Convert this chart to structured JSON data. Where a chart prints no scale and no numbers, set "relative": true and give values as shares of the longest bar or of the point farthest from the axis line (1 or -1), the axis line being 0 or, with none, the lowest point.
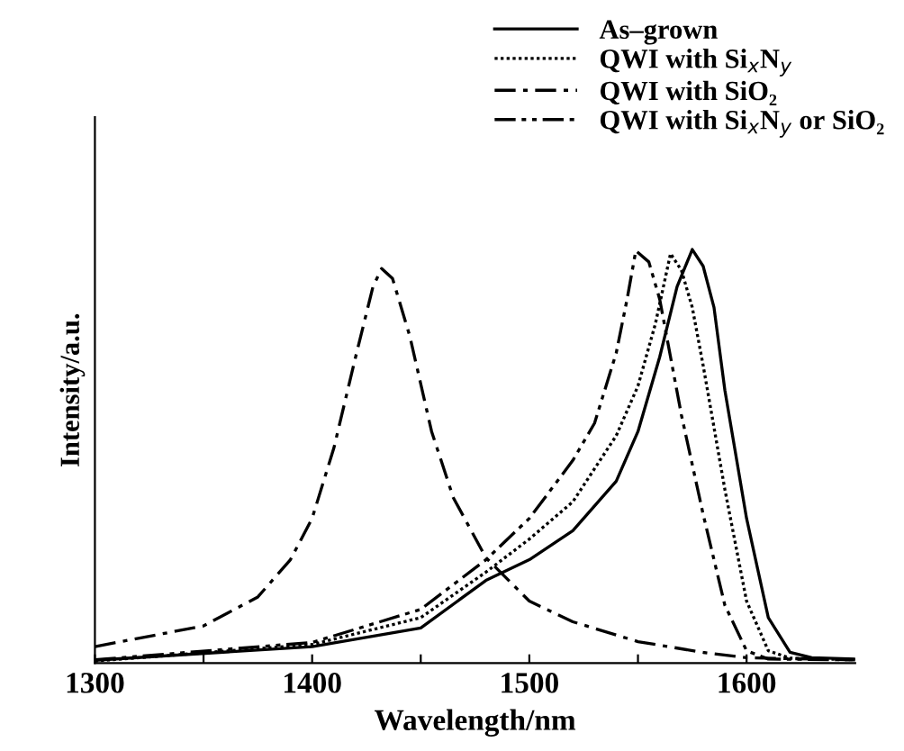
{
  "chart_data": {
    "type": "line",
    "relative": true,
    "xlabel": "Wavelength/nm",
    "ylabel": "Intensity/a.u.",
    "xlim": [
      1300,
      1650
    ],
    "xticks": [
      1300,
      {
        "value": 1350,
        "label": null
      },
      1400,
      {
        "value": 1450,
        "label": null
      },
      1500,
      {
        "value": 1550,
        "label": null
      },
      1600
    ],
    "legend": "top right",
    "grid": false,
    "marker": "none",
    "series": [
      {
        "name": "As–grown",
        "color": "#000000",
        "line_style": "solid",
        "x": [
          1300,
          1400,
          1450,
          1480,
          1500,
          1520,
          1540,
          1550,
          1560,
          1568,
          1575,
          1580,
          1585,
          1590,
          1600,
          1610,
          1620,
          1630,
          1650
        ],
        "values": [
          0.007,
          0.04,
          0.085,
          0.2,
          0.25,
          0.32,
          0.44,
          0.56,
          0.74,
          0.91,
          1.0,
          0.96,
          0.86,
          0.66,
          0.35,
          0.11,
          0.026,
          0.013,
          0.01
        ]
      },
      {
        "name": "QWI with Si$_{x}$N$_{y}$",
        "color": "#000000",
        "line_style": "dotted",
        "x": [
          1300,
          1400,
          1450,
          1480,
          1500,
          1520,
          1540,
          1550,
          1558,
          1565,
          1570,
          1575,
          1580,
          1590,
          1600,
          1610,
          1620,
          1650
        ],
        "values": [
          0.005,
          0.045,
          0.11,
          0.22,
          0.3,
          0.39,
          0.55,
          0.67,
          0.82,
          0.99,
          0.95,
          0.86,
          0.72,
          0.42,
          0.15,
          0.03,
          0.012,
          0.008
        ]
      },
      {
        "name": "QWI with SiO₂",
        "color": "#000000",
        "line_style": "dashdot",
        "x": [
          1300,
          1350,
          1375,
          1390,
          1400,
          1410,
          1420,
          1428,
          1432,
          1437,
          1445,
          1455,
          1465,
          1480,
          1500,
          1520,
          1550,
          1580,
          1600,
          1650
        ],
        "values": [
          0.04,
          0.09,
          0.16,
          0.25,
          0.35,
          0.52,
          0.74,
          0.91,
          0.954,
          0.93,
          0.79,
          0.56,
          0.4,
          0.255,
          0.15,
          0.1,
          0.052,
          0.026,
          0.013,
          0.008
        ]
      },
      {
        "name": "QWI with Si$_{x}$N$_{y}$ or SiO₂",
        "color": "#000000",
        "line_style": "dashdotdot",
        "x": [
          1300,
          1400,
          1450,
          1480,
          1500,
          1520,
          1530,
          1540,
          1545,
          1549,
          1555,
          1560,
          1565,
          1570,
          1580,
          1590,
          1600,
          1610,
          1650
        ],
        "values": [
          0.008,
          0.05,
          0.13,
          0.25,
          0.35,
          0.49,
          0.58,
          0.75,
          0.88,
          0.997,
          0.97,
          0.88,
          0.74,
          0.6,
          0.36,
          0.14,
          0.03,
          0.01,
          0.008
        ]
      }
    ]
  }
}
